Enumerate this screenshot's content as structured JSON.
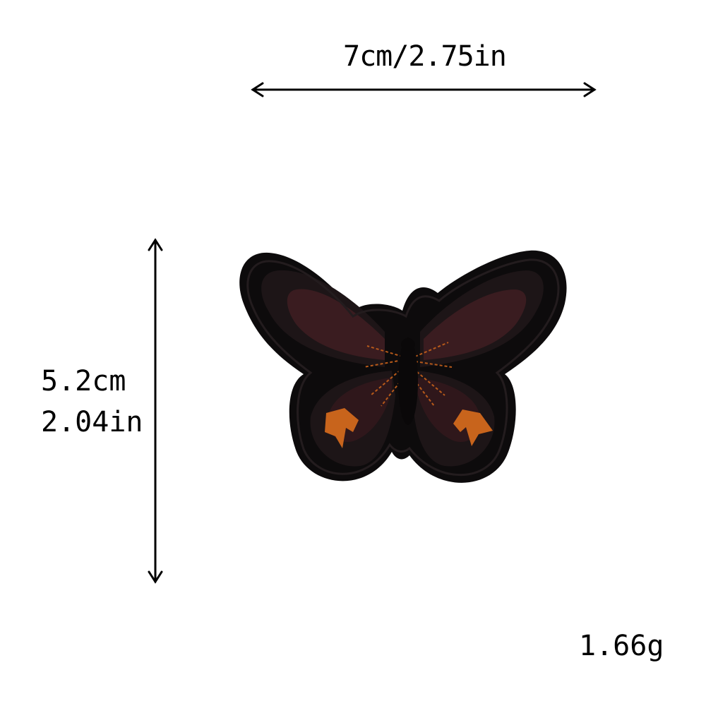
{
  "dimensions": {
    "width_label": "7cm/2.75in",
    "height_label_cm": "5.2cm",
    "height_label_in": "2.04in"
  },
  "weight_label": "1.66g",
  "colors": {
    "background": "#ffffff",
    "patch_border": "#0d0b0c",
    "patch_inner": "#1a1416",
    "wing_pattern": "#3a1c20",
    "accent_orange": "#c8641c",
    "arrow": "#000000"
  },
  "product": {
    "icon": "butterfly-patch-icon"
  }
}
